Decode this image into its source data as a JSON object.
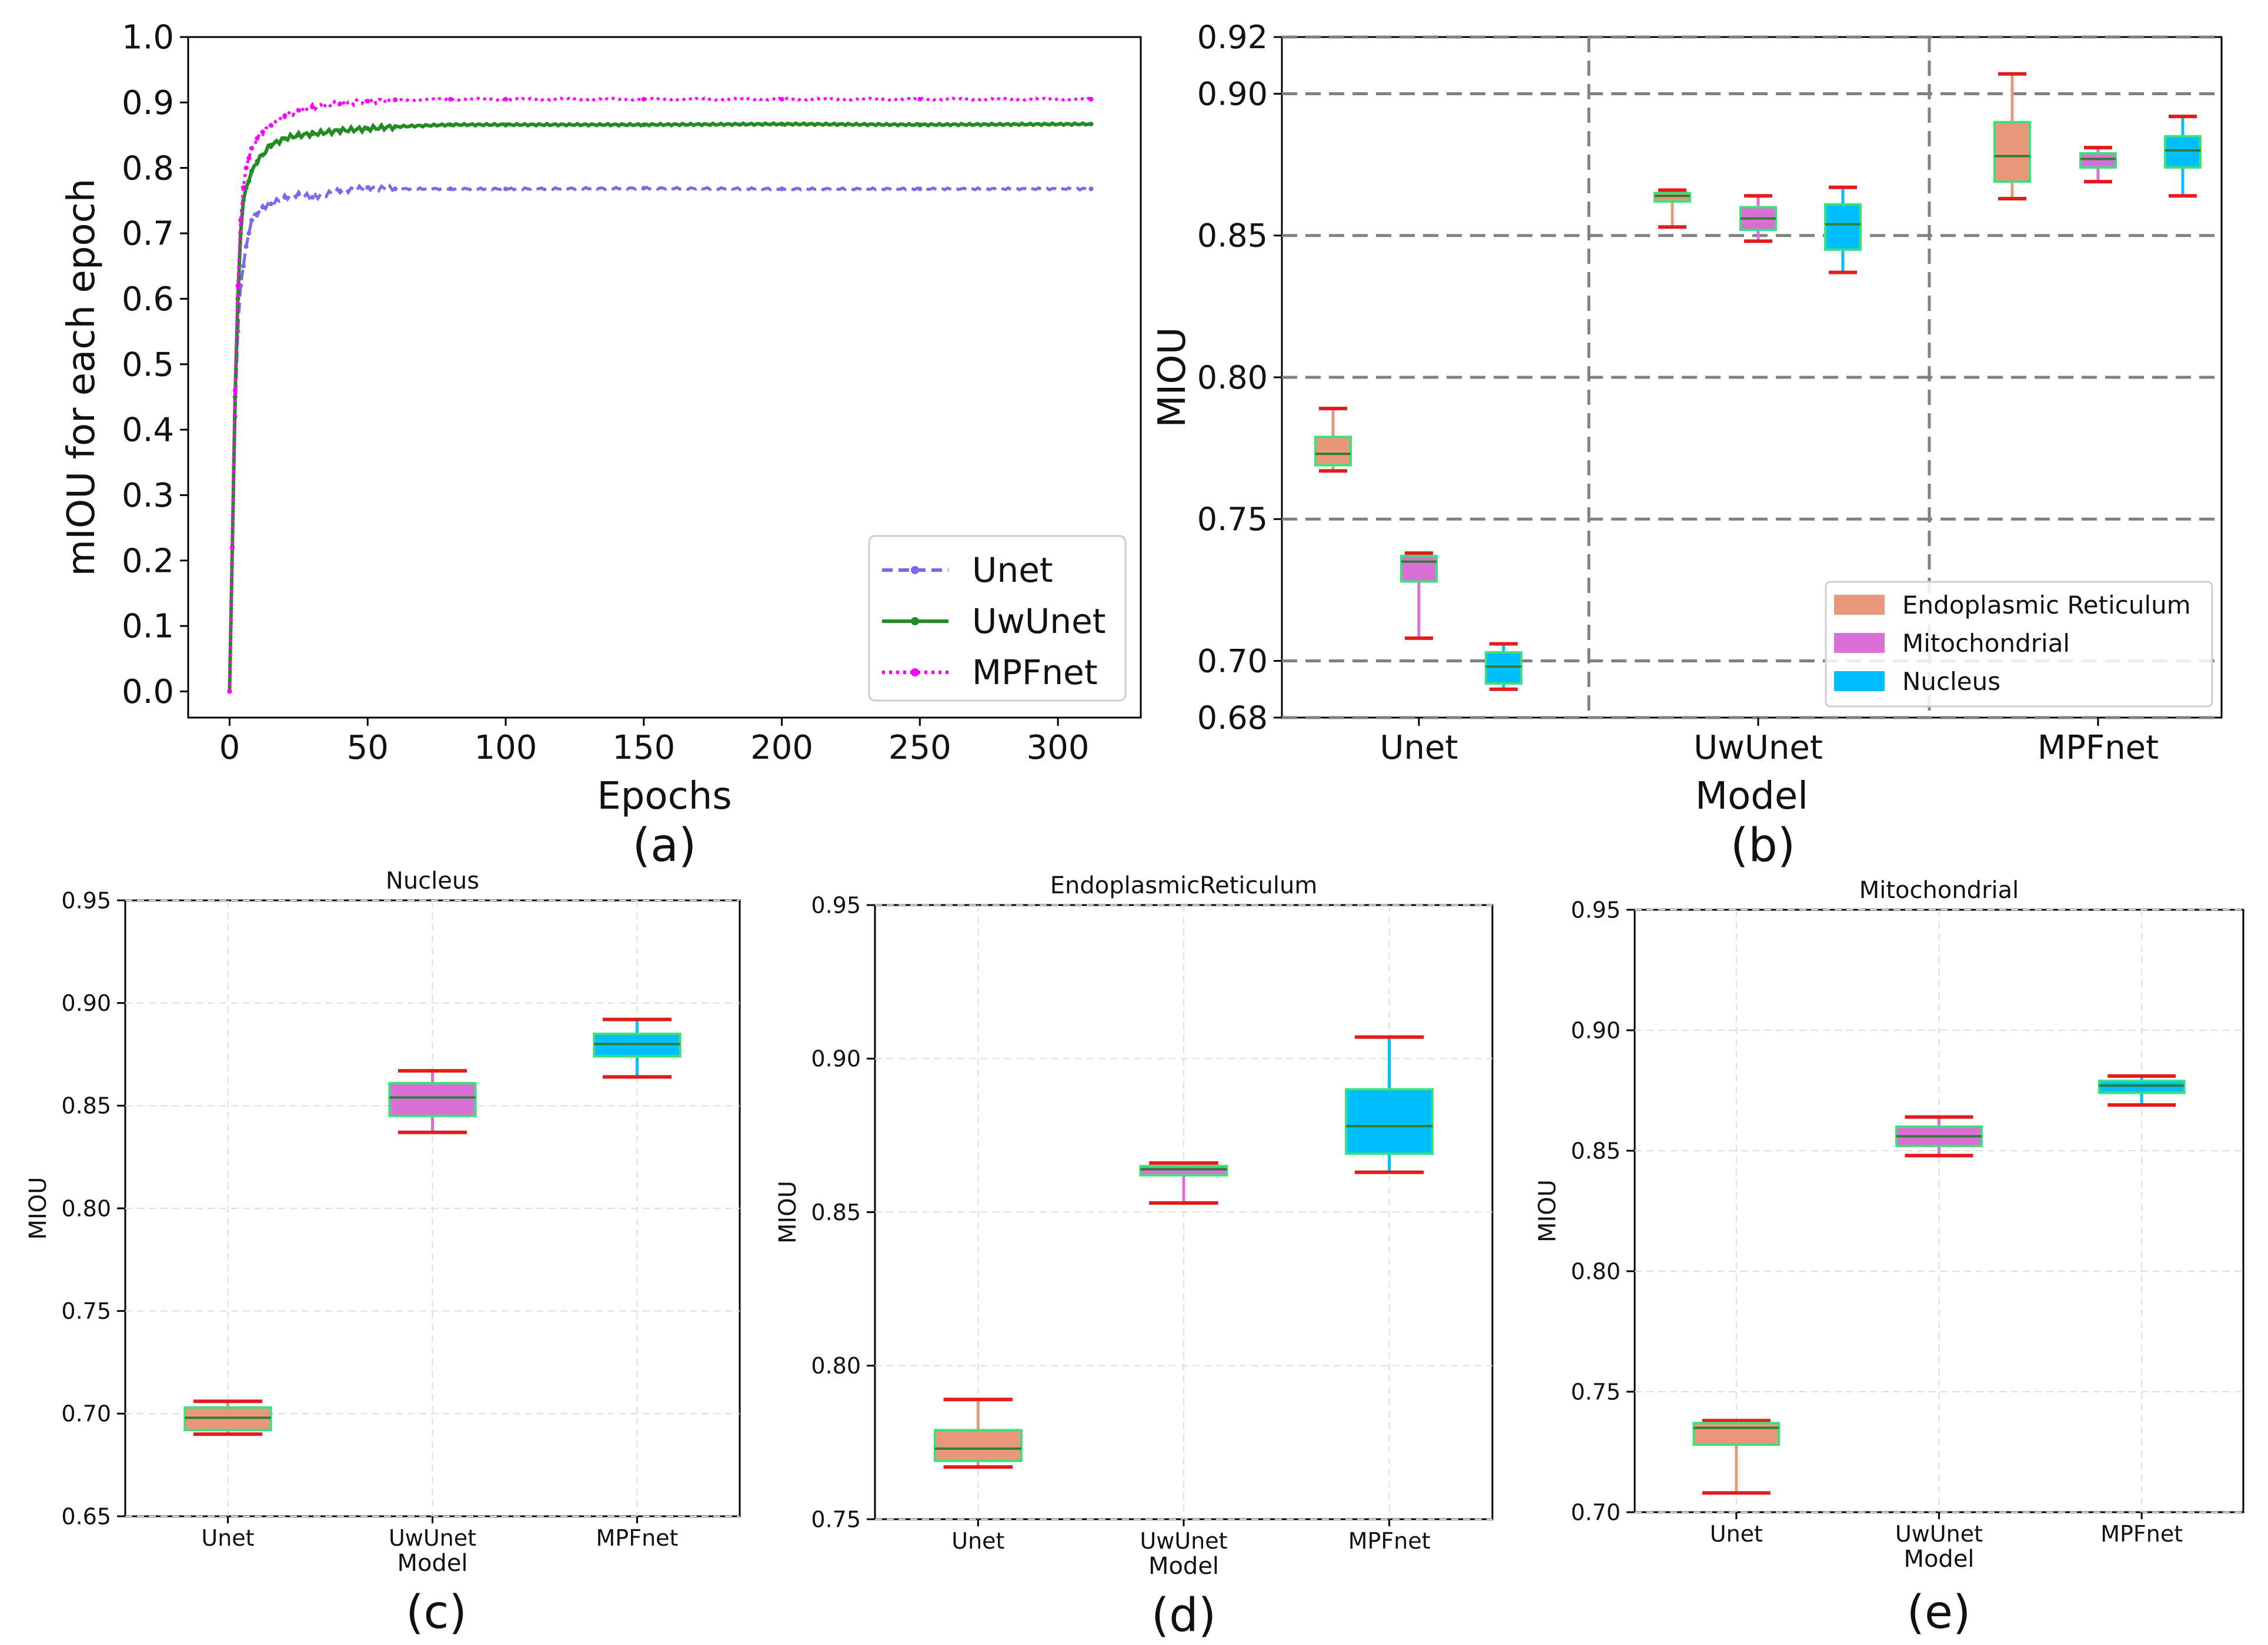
{
  "chart_data": [
    {
      "panel": "(a)",
      "type": "line",
      "xlabel": "Epochs",
      "ylabel": "mIOU for each epoch",
      "xlim": [
        -15,
        330
      ],
      "ylim": [
        -0.04,
        1.0
      ],
      "xticks": [
        0,
        50,
        100,
        150,
        200,
        250,
        300
      ],
      "xtick_labels": [
        "0",
        "50",
        "100",
        "150",
        "200",
        "250",
        "300"
      ],
      "yticks": [
        0,
        0.1,
        0.2,
        0.3,
        0.4,
        0.5,
        0.6,
        0.7,
        0.8,
        0.9,
        1.0
      ],
      "ytick_labels": [
        "0.0",
        "0.1",
        "0.2",
        "0.3",
        "0.4",
        "0.5",
        "0.6",
        "0.7",
        "0.8",
        "0.9",
        "1.0"
      ],
      "legend_position": "lower-right",
      "series": [
        {
          "name": "Unet",
          "color": "#7b68ee",
          "style": "dashed",
          "marker": "x",
          "x": [
            0,
            1,
            2,
            3,
            4,
            5,
            6,
            7,
            8,
            10,
            12,
            15,
            20,
            25,
            30,
            40,
            50,
            60,
            80,
            100,
            150,
            200,
            250,
            312
          ],
          "y": [
            0.0,
            0.22,
            0.42,
            0.55,
            0.62,
            0.65,
            0.68,
            0.7,
            0.72,
            0.73,
            0.74,
            0.745,
            0.755,
            0.76,
            0.755,
            0.765,
            0.77,
            0.768,
            0.768,
            0.768,
            0.769,
            0.768,
            0.768,
            0.768
          ]
        },
        {
          "name": "UwUnet",
          "color": "#228b22",
          "style": "solid",
          "marker": "o",
          "x": [
            0,
            1,
            2,
            3,
            4,
            5,
            6,
            7,
            8,
            10,
            12,
            15,
            20,
            25,
            30,
            40,
            50,
            60,
            80,
            100,
            150,
            200,
            250,
            312
          ],
          "y": [
            0.0,
            0.22,
            0.45,
            0.6,
            0.7,
            0.75,
            0.77,
            0.78,
            0.795,
            0.81,
            0.82,
            0.835,
            0.845,
            0.85,
            0.852,
            0.857,
            0.86,
            0.863,
            0.866,
            0.866,
            0.866,
            0.867,
            0.866,
            0.867
          ]
        },
        {
          "name": "MPFnet",
          "color": "#ff00ff",
          "style": "dotted",
          "marker": ">",
          "x": [
            0,
            1,
            2,
            3,
            4,
            5,
            6,
            7,
            8,
            10,
            12,
            15,
            20,
            25,
            30,
            40,
            50,
            60,
            80,
            100,
            150,
            200,
            250,
            312
          ],
          "y": [
            0.0,
            0.22,
            0.46,
            0.62,
            0.72,
            0.77,
            0.8,
            0.815,
            0.83,
            0.845,
            0.855,
            0.865,
            0.88,
            0.888,
            0.893,
            0.898,
            0.902,
            0.904,
            0.905,
            0.905,
            0.905,
            0.905,
            0.905,
            0.905
          ]
        }
      ]
    },
    {
      "panel": "(b)",
      "type": "box",
      "xlabel": "Model",
      "ylabel": "MIOU",
      "ylim": [
        0.68,
        0.92
      ],
      "yticks": [
        0.68,
        0.7,
        0.75,
        0.8,
        0.85,
        0.9,
        0.92
      ],
      "ytick_labels": [
        "0.68",
        "0.70",
        "0.75",
        "0.80",
        "0.85",
        "0.90",
        "0.92"
      ],
      "categories": [
        "Unet",
        "UwUnet",
        "MPFnet"
      ],
      "legend_position": "lower-right",
      "legend": [
        {
          "name": "Endoplasmic Reticulum",
          "color": "#e8977a"
        },
        {
          "name": "Mitochondrial",
          "color": "#da70d6"
        },
        {
          "name": "Nucleus",
          "color": "#00bfff"
        }
      ],
      "boxes": [
        {
          "category": "Unet",
          "series": "Endoplasmic Reticulum",
          "min": 0.767,
          "q1": 0.769,
          "median": 0.773,
          "q3": 0.779,
          "max": 0.789
        },
        {
          "category": "Unet",
          "series": "Mitochondrial",
          "min": 0.708,
          "q1": 0.728,
          "median": 0.735,
          "q3": 0.737,
          "max": 0.738
        },
        {
          "category": "Unet",
          "series": "Nucleus",
          "min": 0.69,
          "q1": 0.692,
          "median": 0.698,
          "q3": 0.703,
          "max": 0.706
        },
        {
          "category": "UwUnet",
          "series": "Endoplasmic Reticulum",
          "min": 0.853,
          "q1": 0.862,
          "median": 0.864,
          "q3": 0.865,
          "max": 0.866
        },
        {
          "category": "UwUnet",
          "series": "Mitochondrial",
          "min": 0.848,
          "q1": 0.852,
          "median": 0.856,
          "q3": 0.86,
          "max": 0.864
        },
        {
          "category": "UwUnet",
          "series": "Nucleus",
          "min": 0.837,
          "q1": 0.845,
          "median": 0.854,
          "q3": 0.861,
          "max": 0.867
        },
        {
          "category": "MPFnet",
          "series": "Endoplasmic Reticulum",
          "min": 0.863,
          "q1": 0.869,
          "median": 0.878,
          "q3": 0.89,
          "max": 0.907
        },
        {
          "category": "MPFnet",
          "series": "Mitochondrial",
          "min": 0.869,
          "q1": 0.874,
          "median": 0.877,
          "q3": 0.879,
          "max": 0.881
        },
        {
          "category": "MPFnet",
          "series": "Nucleus",
          "min": 0.864,
          "q1": 0.874,
          "median": 0.88,
          "q3": 0.885,
          "max": 0.892
        }
      ]
    },
    {
      "panel": "(c)",
      "type": "box",
      "title": "Nucleus",
      "xlabel": "Model",
      "ylabel": "MIOU",
      "ylim": [
        0.65,
        0.95
      ],
      "yticks": [
        0.65,
        0.7,
        0.75,
        0.8,
        0.85,
        0.9,
        0.95
      ],
      "ytick_labels": [
        "0.65",
        "0.70",
        "0.75",
        "0.80",
        "0.85",
        "0.90",
        "0.95"
      ],
      "categories": [
        "Unet",
        "UwUnet",
        "MPFnet"
      ],
      "boxes": [
        {
          "category": "Unet",
          "color": "#e8977a",
          "min": 0.69,
          "q1": 0.692,
          "median": 0.698,
          "q3": 0.703,
          "max": 0.706
        },
        {
          "category": "UwUnet",
          "color": "#da70d6",
          "min": 0.837,
          "q1": 0.845,
          "median": 0.854,
          "q3": 0.861,
          "max": 0.867
        },
        {
          "category": "MPFnet",
          "color": "#00bfff",
          "min": 0.864,
          "q1": 0.874,
          "median": 0.88,
          "q3": 0.885,
          "max": 0.892
        }
      ]
    },
    {
      "panel": "(d)",
      "type": "box",
      "title": "EndoplasmicReticulum",
      "xlabel": "Model",
      "ylabel": "MIOU",
      "ylim": [
        0.75,
        0.95
      ],
      "yticks": [
        0.75,
        0.8,
        0.85,
        0.9,
        0.95
      ],
      "ytick_labels": [
        "0.75",
        "0.80",
        "0.85",
        "0.90",
        "0.95"
      ],
      "categories": [
        "Unet",
        "UwUnet",
        "MPFnet"
      ],
      "boxes": [
        {
          "category": "Unet",
          "color": "#e8977a",
          "min": 0.767,
          "q1": 0.769,
          "median": 0.773,
          "q3": 0.779,
          "max": 0.789
        },
        {
          "category": "UwUnet",
          "color": "#da70d6",
          "min": 0.853,
          "q1": 0.862,
          "median": 0.864,
          "q3": 0.865,
          "max": 0.866
        },
        {
          "category": "MPFnet",
          "color": "#00bfff",
          "min": 0.863,
          "q1": 0.869,
          "median": 0.878,
          "q3": 0.89,
          "max": 0.907
        }
      ]
    },
    {
      "panel": "(e)",
      "type": "box",
      "title": "Mitochondrial",
      "xlabel": "Model",
      "ylabel": "MIOU",
      "ylim": [
        0.7,
        0.95
      ],
      "yticks": [
        0.7,
        0.75,
        0.8,
        0.85,
        0.9,
        0.95
      ],
      "ytick_labels": [
        "0.70",
        "0.75",
        "0.80",
        "0.85",
        "0.90",
        "0.95"
      ],
      "categories": [
        "Unet",
        "UwUnet",
        "MPFnet"
      ],
      "boxes": [
        {
          "category": "Unet",
          "color": "#e8977a",
          "min": 0.708,
          "q1": 0.728,
          "median": 0.735,
          "q3": 0.737,
          "max": 0.738
        },
        {
          "category": "UwUnet",
          "color": "#da70d6",
          "min": 0.848,
          "q1": 0.852,
          "median": 0.856,
          "q3": 0.86,
          "max": 0.864
        },
        {
          "category": "MPFnet",
          "color": "#00bfff",
          "min": 0.869,
          "q1": 0.874,
          "median": 0.877,
          "q3": 0.879,
          "max": 0.881
        }
      ]
    }
  ],
  "style": {
    "whisker_cap_color": "#e41a1c",
    "box_edge_color": "#3ee07a",
    "median_color": "#2e7d32",
    "grid_color": "#808080"
  }
}
